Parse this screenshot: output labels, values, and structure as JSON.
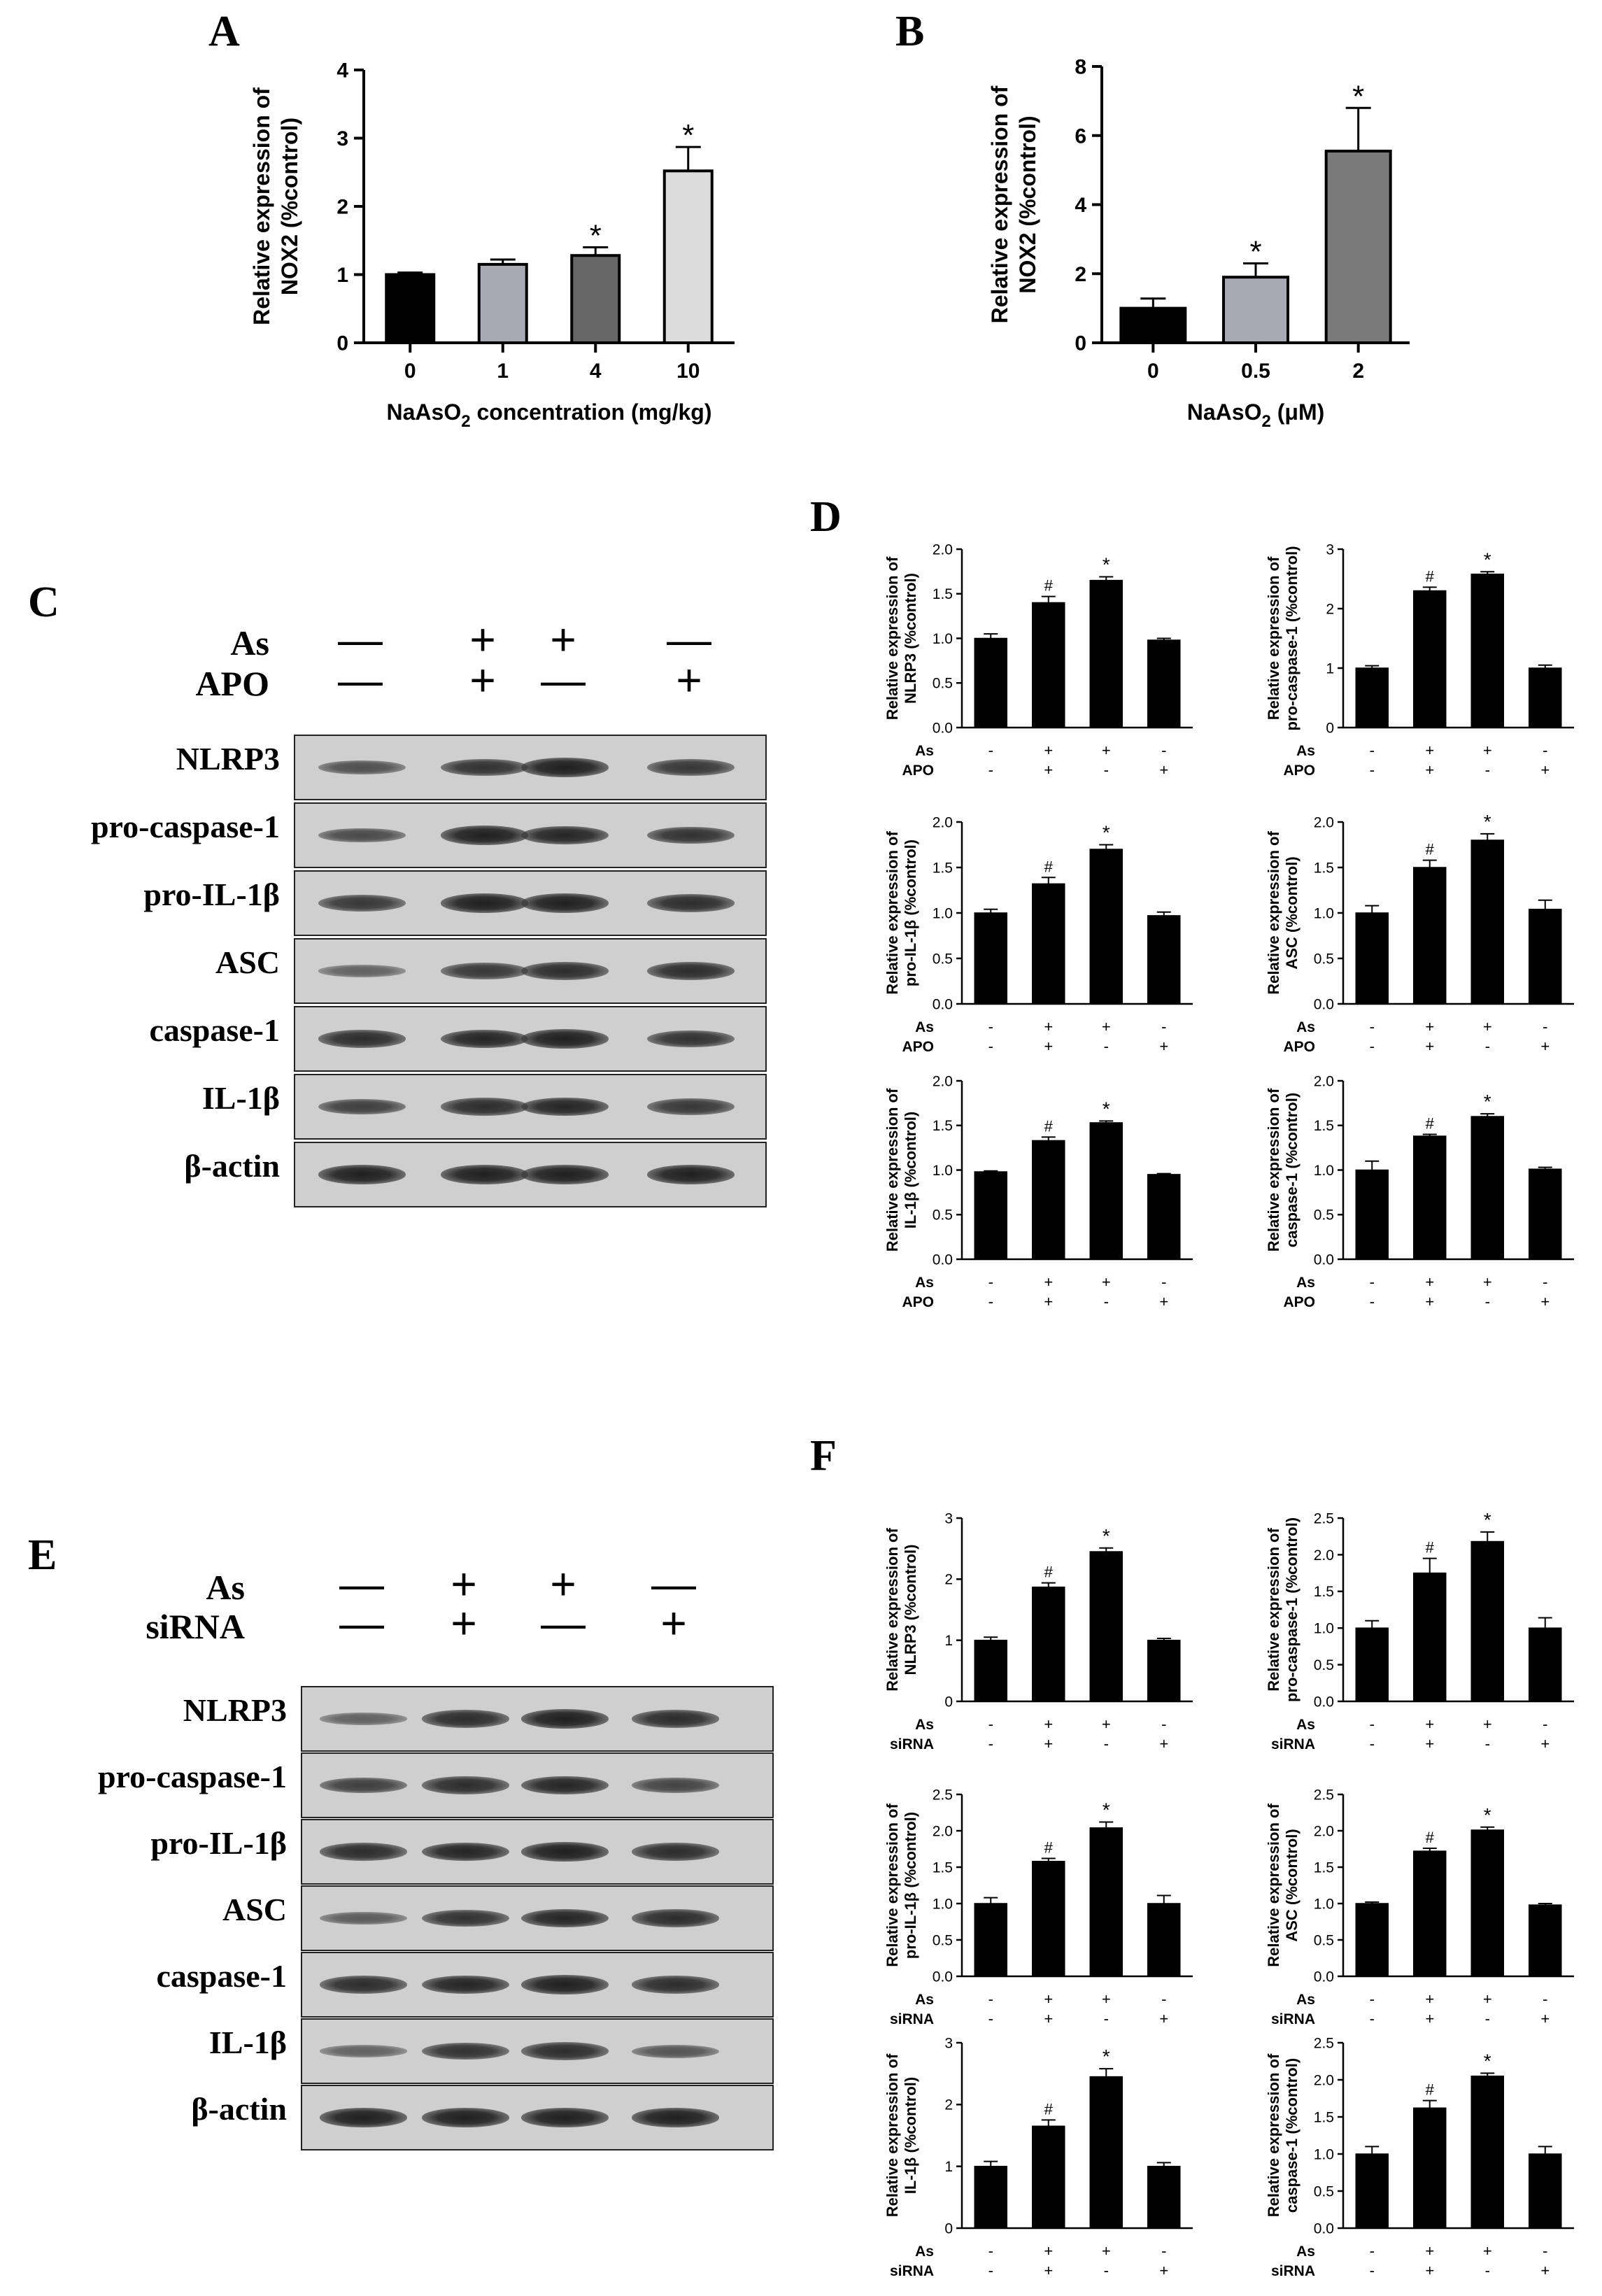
{
  "panel_letters": {
    "A": "A",
    "B": "B",
    "C": "C",
    "D": "D",
    "E": "E",
    "F": "F"
  },
  "blot_C": {
    "conditions": [
      {
        "name": "As",
        "signs": [
          "—",
          "+",
          "+",
          "—"
        ]
      },
      {
        "name": "APO",
        "signs": [
          "—",
          "+",
          "—",
          "+"
        ]
      }
    ],
    "rows": [
      {
        "label": "NLRP3",
        "intensity": [
          0.55,
          0.8,
          0.95,
          0.75
        ]
      },
      {
        "label": "pro-caspase-1",
        "intensity": [
          0.6,
          0.95,
          0.9,
          0.8
        ]
      },
      {
        "label": "pro-IL-1β",
        "intensity": [
          0.75,
          0.95,
          0.95,
          0.85
        ]
      },
      {
        "label": "ASC",
        "intensity": [
          0.4,
          0.75,
          0.85,
          0.85
        ]
      },
      {
        "label": "caspase-1",
        "intensity": [
          0.85,
          0.9,
          0.95,
          0.8
        ]
      },
      {
        "label": "IL-1β",
        "intensity": [
          0.7,
          0.85,
          0.9,
          0.75
        ]
      },
      {
        "label": "β-actin",
        "intensity": [
          0.95,
          0.95,
          0.95,
          0.95
        ]
      }
    ]
  },
  "blot_E": {
    "conditions": [
      {
        "name": "As",
        "signs": [
          "—",
          "+",
          "+",
          "—"
        ]
      },
      {
        "name": "siRNA",
        "signs": [
          "—",
          "+",
          "—",
          "+"
        ]
      }
    ],
    "rows": [
      {
        "label": "NLRP3",
        "intensity": [
          0.4,
          0.85,
          0.95,
          0.85
        ]
      },
      {
        "label": "pro-caspase-1",
        "intensity": [
          0.7,
          0.85,
          0.9,
          0.65
        ]
      },
      {
        "label": "pro-IL-1β",
        "intensity": [
          0.85,
          0.9,
          0.95,
          0.85
        ]
      },
      {
        "label": "ASC",
        "intensity": [
          0.45,
          0.8,
          0.9,
          0.85
        ]
      },
      {
        "label": "caspase-1",
        "intensity": [
          0.85,
          0.9,
          0.95,
          0.85
        ]
      },
      {
        "label": "IL-1β",
        "intensity": [
          0.4,
          0.8,
          0.85,
          0.5
        ]
      },
      {
        "label": "β-actin",
        "intensity": [
          0.95,
          0.95,
          0.95,
          0.95
        ]
      }
    ]
  },
  "chart_data": [
    {
      "id": "A",
      "type": "bar",
      "categories": [
        "0",
        "1",
        "4",
        "10"
      ],
      "values": [
        1.0,
        1.15,
        1.28,
        2.52
      ],
      "errors": [
        0.03,
        0.07,
        0.12,
        0.35
      ],
      "marks": [
        "",
        "",
        "*",
        "*"
      ],
      "colors": [
        "#000000",
        "#a9a9b3",
        "#666666",
        "#dcdcdc"
      ],
      "ylabel_line1": "Relative expression of",
      "ylabel_line2": "NOX2 (%control)",
      "xlabel_pre": "NaAsO",
      "xlabel_sub": "2",
      "xlabel_post": " concentration (mg/kg)",
      "ylim": [
        0,
        4
      ],
      "yticks": [
        "0",
        "1",
        "2",
        "3",
        "4"
      ]
    },
    {
      "id": "B",
      "type": "bar",
      "categories": [
        "0",
        "0.5",
        "2"
      ],
      "values": [
        1.0,
        1.9,
        5.55
      ],
      "errors": [
        0.28,
        0.4,
        1.25
      ],
      "marks": [
        "",
        "*",
        "*"
      ],
      "colors": [
        "#000000",
        "#a9a9b3",
        "#7a7a7a"
      ],
      "ylabel_line1": "Relative expression of",
      "ylabel_line2": "NOX2 (%control)",
      "xlabel_pre": "NaAsO",
      "xlabel_sub": "2",
      "xlabel_post": " (μM)",
      "ylim": [
        0,
        8
      ],
      "yticks": [
        "0",
        "2",
        "4",
        "6",
        "8"
      ]
    },
    {
      "id": "D1",
      "type": "bar",
      "values": [
        1.0,
        1.4,
        1.65,
        0.98
      ],
      "errors": [
        0.05,
        0.07,
        0.04,
        0.02
      ],
      "marks": [
        "",
        "#",
        "*",
        ""
      ],
      "ylabel_line1": "Relative expression of",
      "ylabel_line2": "NLRP3 (%control)",
      "ylim": [
        0,
        2.0
      ],
      "yticks": [
        "0.0",
        "0.5",
        "1.0",
        "1.5",
        "2.0"
      ],
      "row1": "As",
      "row2": "APO",
      "row1_signs": [
        "-",
        "+",
        "+",
        "-"
      ],
      "row2_signs": [
        "-",
        "+",
        "-",
        "+"
      ]
    },
    {
      "id": "D2",
      "type": "bar",
      "values": [
        1.0,
        2.3,
        2.58,
        1.0
      ],
      "errors": [
        0.04,
        0.06,
        0.04,
        0.05
      ],
      "marks": [
        "",
        "#",
        "*",
        ""
      ],
      "ylabel_line1": "Relative expression of",
      "ylabel_line2": "pro-caspase-1 (%control)",
      "ylim": [
        0,
        3
      ],
      "yticks": [
        "0",
        "1",
        "2",
        "3"
      ],
      "row1": "As",
      "row2": "APO",
      "row1_signs": [
        "-",
        "+",
        "+",
        "-"
      ],
      "row2_signs": [
        "-",
        "+",
        "-",
        "+"
      ]
    },
    {
      "id": "D3",
      "type": "bar",
      "values": [
        1.0,
        1.32,
        1.7,
        0.97
      ],
      "errors": [
        0.04,
        0.07,
        0.05,
        0.04
      ],
      "marks": [
        "",
        "#",
        "*",
        ""
      ],
      "ylabel_line1": "Relative expression of",
      "ylabel_line2": "pro-IL-1β (%control)",
      "ylim": [
        0,
        2.0
      ],
      "yticks": [
        "0.0",
        "0.5",
        "1.0",
        "1.5",
        "2.0"
      ],
      "row1": "As",
      "row2": "APO",
      "row1_signs": [
        "-",
        "+",
        "+",
        "-"
      ],
      "row2_signs": [
        "-",
        "+",
        "-",
        "+"
      ]
    },
    {
      "id": "D4",
      "type": "bar",
      "values": [
        1.0,
        1.5,
        1.8,
        1.04
      ],
      "errors": [
        0.08,
        0.08,
        0.07,
        0.1
      ],
      "marks": [
        "",
        "#",
        "*",
        ""
      ],
      "ylabel_line1": "Relative expression of",
      "ylabel_line2": "ASC (%control)",
      "ylim": [
        0,
        2.0
      ],
      "yticks": [
        "0.0",
        "0.5",
        "1.0",
        "1.5",
        "2.0"
      ],
      "row1": "As",
      "row2": "APO",
      "row1_signs": [
        "-",
        "+",
        "+",
        "-"
      ],
      "row2_signs": [
        "-",
        "+",
        "-",
        "+"
      ]
    },
    {
      "id": "D5",
      "type": "bar",
      "values": [
        0.98,
        1.33,
        1.53,
        0.95
      ],
      "errors": [
        0.01,
        0.04,
        0.02,
        0.01
      ],
      "marks": [
        "",
        "#",
        "*",
        ""
      ],
      "ylabel_line1": "Relative expression of",
      "ylabel_line2": "IL-1β (%control)",
      "ylim": [
        0,
        2.0
      ],
      "yticks": [
        "0.0",
        "0.5",
        "1.0",
        "1.5",
        "2.0"
      ],
      "row1": "As",
      "row2": "APO",
      "row1_signs": [
        "-",
        "+",
        "+",
        "-"
      ],
      "row2_signs": [
        "-",
        "+",
        "-",
        "+"
      ]
    },
    {
      "id": "D6",
      "type": "bar",
      "values": [
        1.0,
        1.38,
        1.6,
        1.01
      ],
      "errors": [
        0.1,
        0.02,
        0.03,
        0.02
      ],
      "marks": [
        "",
        "#",
        "*",
        ""
      ],
      "ylabel_line1": "Relative expression of",
      "ylabel_line2": "caspase-1 (%control)",
      "ylim": [
        0,
        2.0
      ],
      "yticks": [
        "0.0",
        "0.5",
        "1.0",
        "1.5",
        "2.0"
      ],
      "row1": "As",
      "row2": "APO",
      "row1_signs": [
        "-",
        "+",
        "+",
        "-"
      ],
      "row2_signs": [
        "-",
        "+",
        "-",
        "+"
      ]
    },
    {
      "id": "F1",
      "type": "bar",
      "values": [
        1.0,
        1.87,
        2.45,
        1.0
      ],
      "errors": [
        0.05,
        0.07,
        0.06,
        0.03
      ],
      "marks": [
        "",
        "#",
        "*",
        ""
      ],
      "ylabel_line1": "Relative expression of",
      "ylabel_line2": "NLRP3 (%control)",
      "ylim": [
        0,
        3
      ],
      "yticks": [
        "0",
        "1",
        "2",
        "3"
      ],
      "row1": "As",
      "row2": "siRNA",
      "row1_signs": [
        "-",
        "+",
        "+",
        "-"
      ],
      "row2_signs": [
        "-",
        "+",
        "-",
        "+"
      ]
    },
    {
      "id": "F2",
      "type": "bar",
      "values": [
        1.0,
        1.75,
        2.18,
        1.0
      ],
      "errors": [
        0.1,
        0.2,
        0.13,
        0.14
      ],
      "marks": [
        "",
        "#",
        "*",
        ""
      ],
      "ylabel_line1": "Relative expression of",
      "ylabel_line2": "pro-caspase-1 (%control)",
      "ylim": [
        0,
        2.5
      ],
      "yticks": [
        "0.0",
        "0.5",
        "1.0",
        "1.5",
        "2.0",
        "2.5"
      ],
      "row1": "As",
      "row2": "siRNA",
      "row1_signs": [
        "-",
        "+",
        "+",
        "-"
      ],
      "row2_signs": [
        "-",
        "+",
        "-",
        "+"
      ]
    },
    {
      "id": "F3",
      "type": "bar",
      "values": [
        1.0,
        1.58,
        2.04,
        1.0
      ],
      "errors": [
        0.08,
        0.04,
        0.08,
        0.11
      ],
      "marks": [
        "",
        "#",
        "*",
        ""
      ],
      "ylabel_line1": "Relative expression of",
      "ylabel_line2": "pro-IL-1β (%control)",
      "ylim": [
        0,
        2.5
      ],
      "yticks": [
        "0.0",
        "0.5",
        "1.0",
        "1.5",
        "2.0",
        "2.5"
      ],
      "row1": "As",
      "row2": "siRNA",
      "row1_signs": [
        "-",
        "+",
        "+",
        "-"
      ],
      "row2_signs": [
        "-",
        "+",
        "-",
        "+"
      ]
    },
    {
      "id": "F4",
      "type": "bar",
      "values": [
        1.0,
        1.72,
        2.01,
        0.98
      ],
      "errors": [
        0.02,
        0.04,
        0.04,
        0.02
      ],
      "marks": [
        "",
        "#",
        "*",
        ""
      ],
      "ylabel_line1": "Relative expression of",
      "ylabel_line2": "ASC (%control)",
      "ylim": [
        0,
        2.5
      ],
      "yticks": [
        "0.0",
        "0.5",
        "1.0",
        "1.5",
        "2.0",
        "2.5"
      ],
      "row1": "As",
      "row2": "siRNA",
      "row1_signs": [
        "-",
        "+",
        "+",
        "-"
      ],
      "row2_signs": [
        "-",
        "+",
        "-",
        "+"
      ]
    },
    {
      "id": "F5",
      "type": "bar",
      "values": [
        1.0,
        1.65,
        2.45,
        1.0
      ],
      "errors": [
        0.08,
        0.1,
        0.13,
        0.06
      ],
      "marks": [
        "",
        "#",
        "*",
        ""
      ],
      "ylabel_line1": "Relative expression of",
      "ylabel_line2": "IL-1β (%control)",
      "ylim": [
        0,
        3
      ],
      "yticks": [
        "0",
        "1",
        "2",
        "3"
      ],
      "row1": "As",
      "row2": "siRNA",
      "row1_signs": [
        "-",
        "+",
        "+",
        "-"
      ],
      "row2_signs": [
        "-",
        "+",
        "-",
        "+"
      ]
    },
    {
      "id": "F6",
      "type": "bar",
      "values": [
        1.0,
        1.62,
        2.05,
        1.0
      ],
      "errors": [
        0.1,
        0.1,
        0.04,
        0.1
      ],
      "marks": [
        "",
        "#",
        "*",
        ""
      ],
      "ylabel_line1": "Relative expression of",
      "ylabel_line2": "caspase-1 (%control)",
      "ylim": [
        0,
        2.5
      ],
      "yticks": [
        "0.0",
        "0.5",
        "1.0",
        "1.5",
        "2.0",
        "2.5"
      ],
      "row1": "As",
      "row2": "siRNA",
      "row1_signs": [
        "-",
        "+",
        "+",
        "-"
      ],
      "row2_signs": [
        "-",
        "+",
        "-",
        "+"
      ]
    }
  ]
}
